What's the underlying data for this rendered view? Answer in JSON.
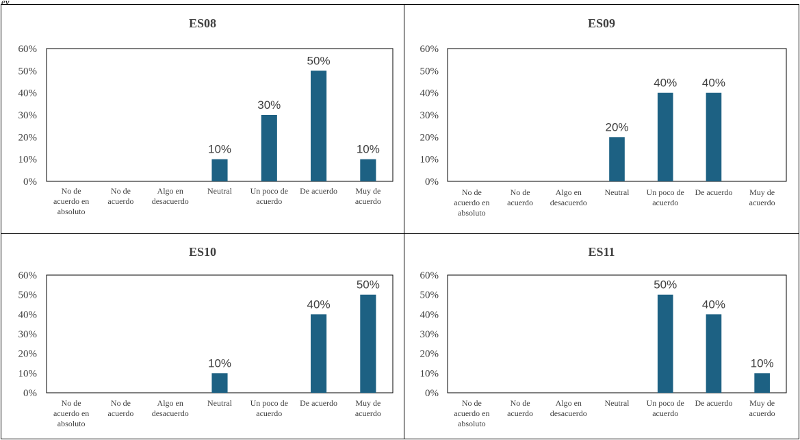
{
  "page": {
    "corner_text": "ey"
  },
  "chart_data": [
    {
      "type": "bar",
      "title": "ES08",
      "categories": [
        [
          "No de",
          "acuerdo en",
          "absoluto"
        ],
        [
          "No de",
          "acuerdo"
        ],
        [
          "Algo en",
          "desacuerdo"
        ],
        [
          "Neutral"
        ],
        [
          "Un poco de",
          "acuerdo"
        ],
        [
          "De acuerdo"
        ],
        [
          "Muy de",
          "acuerdo"
        ]
      ],
      "values": [
        0,
        0,
        0,
        10,
        30,
        50,
        10
      ],
      "labels": [
        "",
        "",
        "",
        "10%",
        "30%",
        "50%",
        "10%"
      ],
      "yticks": [
        "0%",
        "10%",
        "20%",
        "30%",
        "40%",
        "50%",
        "60%"
      ],
      "ylim": [
        0,
        60
      ],
      "color": "#1d6183"
    },
    {
      "type": "bar",
      "title": "ES09",
      "categories": [
        [
          "No de",
          "acuerdo en",
          "absoluto"
        ],
        [
          "No de",
          "acuerdo"
        ],
        [
          "Algo en",
          "desacuerdo"
        ],
        [
          "Neutral"
        ],
        [
          "Un poco de",
          "acuerdo"
        ],
        [
          "De acuerdo"
        ],
        [
          "Muy de",
          "acuerdo"
        ]
      ],
      "values": [
        0,
        0,
        0,
        20,
        40,
        40,
        0
      ],
      "labels": [
        "",
        "",
        "",
        "20%",
        "40%",
        "40%",
        ""
      ],
      "yticks": [
        "0%",
        "10%",
        "20%",
        "30%",
        "40%",
        "50%",
        "60%"
      ],
      "ylim": [
        0,
        60
      ],
      "color": "#1d6183"
    },
    {
      "type": "bar",
      "title": "ES10",
      "categories": [
        [
          "No de",
          "acuerdo en",
          "absoluto"
        ],
        [
          "No de",
          "acuerdo"
        ],
        [
          "Algo en",
          "desacuerdo"
        ],
        [
          "Neutral"
        ],
        [
          "Un poco de",
          "acuerdo"
        ],
        [
          "De acuerdo"
        ],
        [
          "Muy de",
          "acuerdo"
        ]
      ],
      "values": [
        0,
        0,
        0,
        10,
        0,
        40,
        50
      ],
      "labels": [
        "",
        "",
        "",
        "10%",
        "",
        "40%",
        "50%"
      ],
      "yticks": [
        "0%",
        "10%",
        "20%",
        "30%",
        "40%",
        "50%",
        "60%"
      ],
      "ylim": [
        0,
        60
      ],
      "color": "#1d6183"
    },
    {
      "type": "bar",
      "title": "ES11",
      "categories": [
        [
          "No de",
          "acuerdo en",
          "absoluto"
        ],
        [
          "No de",
          "acuerdo"
        ],
        [
          "Algo en",
          "desacuerdo"
        ],
        [
          "Neutral"
        ],
        [
          "Un poco de",
          "acuerdo"
        ],
        [
          "De acuerdo"
        ],
        [
          "Muy de",
          "acuerdo"
        ]
      ],
      "values": [
        0,
        0,
        0,
        0,
        50,
        40,
        10
      ],
      "labels": [
        "",
        "",
        "",
        "",
        "50%",
        "40%",
        "10%"
      ],
      "yticks": [
        "0%",
        "10%",
        "20%",
        "30%",
        "40%",
        "50%",
        "60%"
      ],
      "ylim": [
        0,
        60
      ],
      "color": "#1d6183"
    }
  ]
}
